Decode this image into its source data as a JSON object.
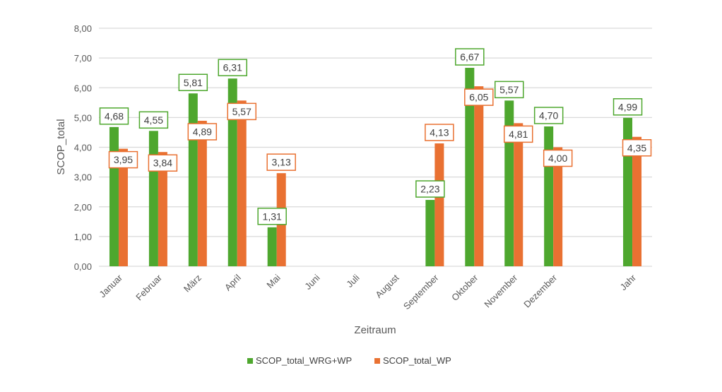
{
  "chart_data": {
    "type": "bar",
    "title": "",
    "xlabel": "Zeitraum",
    "ylabel": "SCOP_total",
    "ylim": [
      0,
      8
    ],
    "yticks": [
      "0,00",
      "1,00",
      "2,00",
      "3,00",
      "4,00",
      "5,00",
      "6,00",
      "7,00",
      "8,00"
    ],
    "grid": true,
    "legend_position": "bottom",
    "categories": [
      "Januar",
      "Februar",
      "März",
      "April",
      "Mai",
      "Juni",
      "Juli",
      "August",
      "September",
      "Oktober",
      "November",
      "Dezember",
      "",
      "Jahr"
    ],
    "series": [
      {
        "name": "SCOP_total_WRG+WP",
        "color": "#4EA72E",
        "values": [
          4.68,
          4.55,
          5.81,
          6.31,
          1.31,
          null,
          null,
          null,
          2.23,
          6.67,
          5.57,
          4.7,
          null,
          4.99
        ],
        "labels": [
          "4,68",
          "4,55",
          "5,81",
          "6,31",
          "1,31",
          null,
          null,
          null,
          "2,23",
          "6,67",
          "5,57",
          "4,70",
          null,
          "4,99"
        ]
      },
      {
        "name": "SCOP_total_WP",
        "color": "#E97132",
        "values": [
          3.95,
          3.84,
          4.89,
          5.57,
          3.13,
          null,
          null,
          null,
          4.13,
          6.05,
          4.81,
          4.0,
          null,
          4.35
        ],
        "labels": [
          "3,95",
          "3,84",
          "4,89",
          "5,57",
          "3,13",
          null,
          null,
          null,
          "4,13",
          "6,05",
          "4,81",
          "4,00",
          null,
          "4,35"
        ]
      }
    ]
  }
}
